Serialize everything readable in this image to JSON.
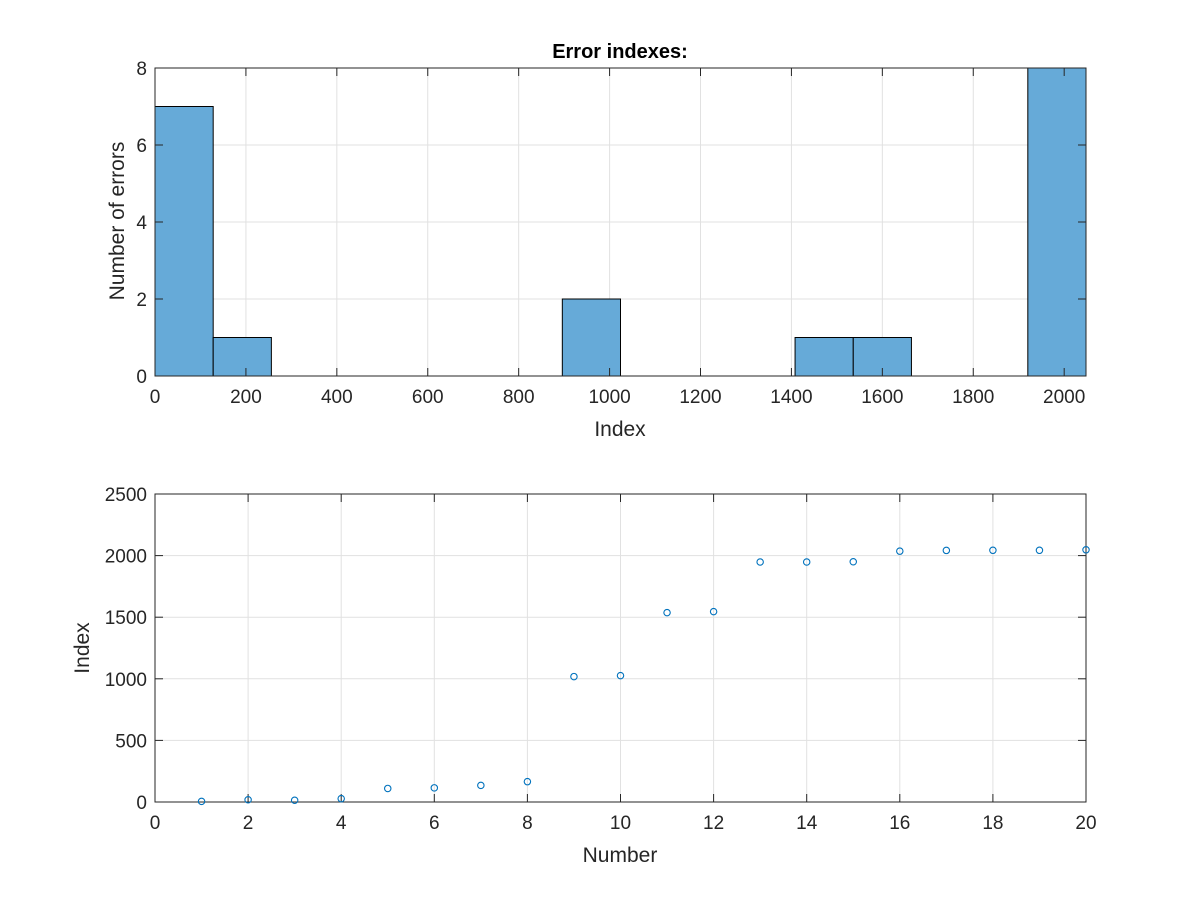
{
  "colors": {
    "bar_fill": "#66aad8",
    "bar_edge": "#000000",
    "marker": "#0072bd",
    "grid": "#e1e1e1",
    "axis": "#262626"
  },
  "chart_data": [
    {
      "type": "bar",
      "subtype": "histogram",
      "title": "Error indexes:",
      "xlabel": "Index",
      "ylabel": "Number of errors",
      "xlim": [
        0,
        2048
      ],
      "ylim": [
        0,
        8
      ],
      "xticks": [
        0,
        200,
        400,
        600,
        800,
        1000,
        1200,
        1400,
        1600,
        1800,
        2000
      ],
      "yticks": [
        0,
        2,
        4,
        6,
        8
      ],
      "grid": true,
      "bin_edges": [
        0,
        128,
        256,
        384,
        512,
        640,
        768,
        896,
        1024,
        1152,
        1280,
        1408,
        1536,
        1664,
        1792,
        1920,
        2048
      ],
      "values": [
        7,
        1,
        0,
        0,
        0,
        0,
        0,
        2,
        0,
        0,
        0,
        1,
        1,
        0,
        0,
        8
      ]
    },
    {
      "type": "scatter",
      "title": "",
      "xlabel": "Number",
      "ylabel": "Index",
      "xlim": [
        0,
        20
      ],
      "ylim": [
        0,
        2500
      ],
      "xticks": [
        0,
        2,
        4,
        6,
        8,
        10,
        12,
        14,
        16,
        18,
        20
      ],
      "yticks": [
        0,
        500,
        1000,
        1500,
        2000,
        2500
      ],
      "grid": true,
      "x": [
        1,
        2,
        3,
        4,
        5,
        6,
        7,
        8,
        9,
        10,
        11,
        12,
        13,
        14,
        15,
        16,
        17,
        18,
        19,
        20
      ],
      "y": [
        5,
        18,
        14,
        27,
        110,
        115,
        135,
        165,
        1018,
        1026,
        1537,
        1545,
        1948,
        1948,
        1950,
        2036,
        2042,
        2043,
        2043,
        2047
      ]
    }
  ]
}
